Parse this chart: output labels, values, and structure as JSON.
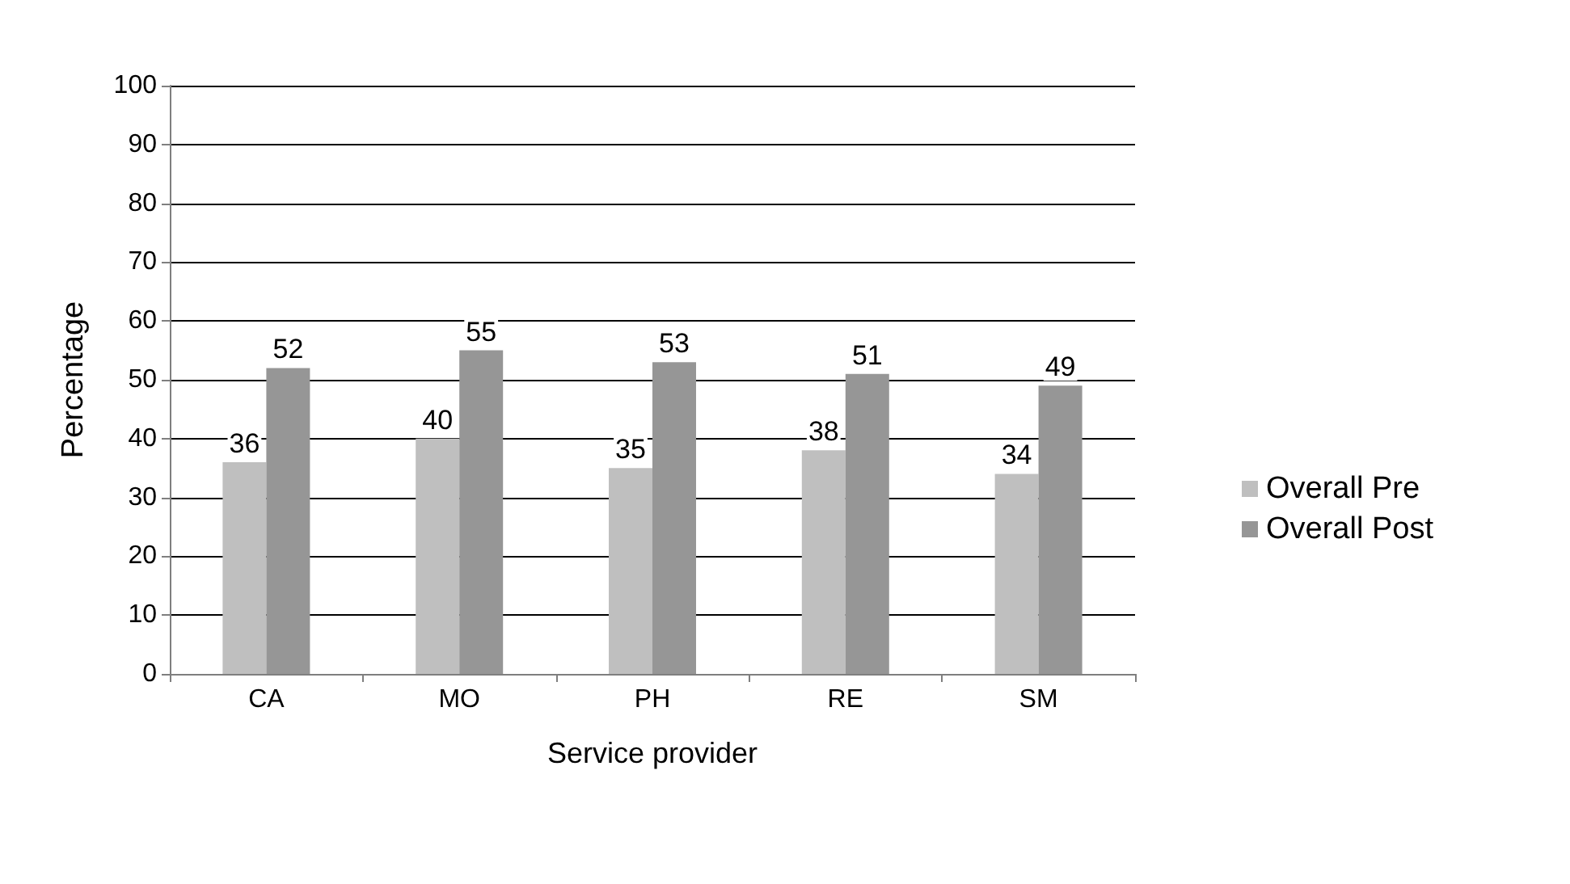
{
  "chart_data": {
    "type": "bar",
    "xlabel": "Service provider",
    "ylabel": "Percentage",
    "categories": [
      "CA",
      "MO",
      "PH",
      "RE",
      "SM"
    ],
    "series": [
      {
        "name": "Overall Pre",
        "color": "#bfbfbf",
        "values": [
          36,
          40,
          35,
          38,
          34
        ]
      },
      {
        "name": "Overall Post",
        "color": "#969696",
        "values": [
          52,
          55,
          53,
          51,
          49
        ]
      }
    ],
    "ylim": [
      0,
      100
    ],
    "yticks": [
      0,
      10,
      20,
      30,
      40,
      50,
      60,
      70,
      80,
      90,
      100
    ],
    "grid": "y",
    "legend": "right",
    "data_labels": true
  }
}
